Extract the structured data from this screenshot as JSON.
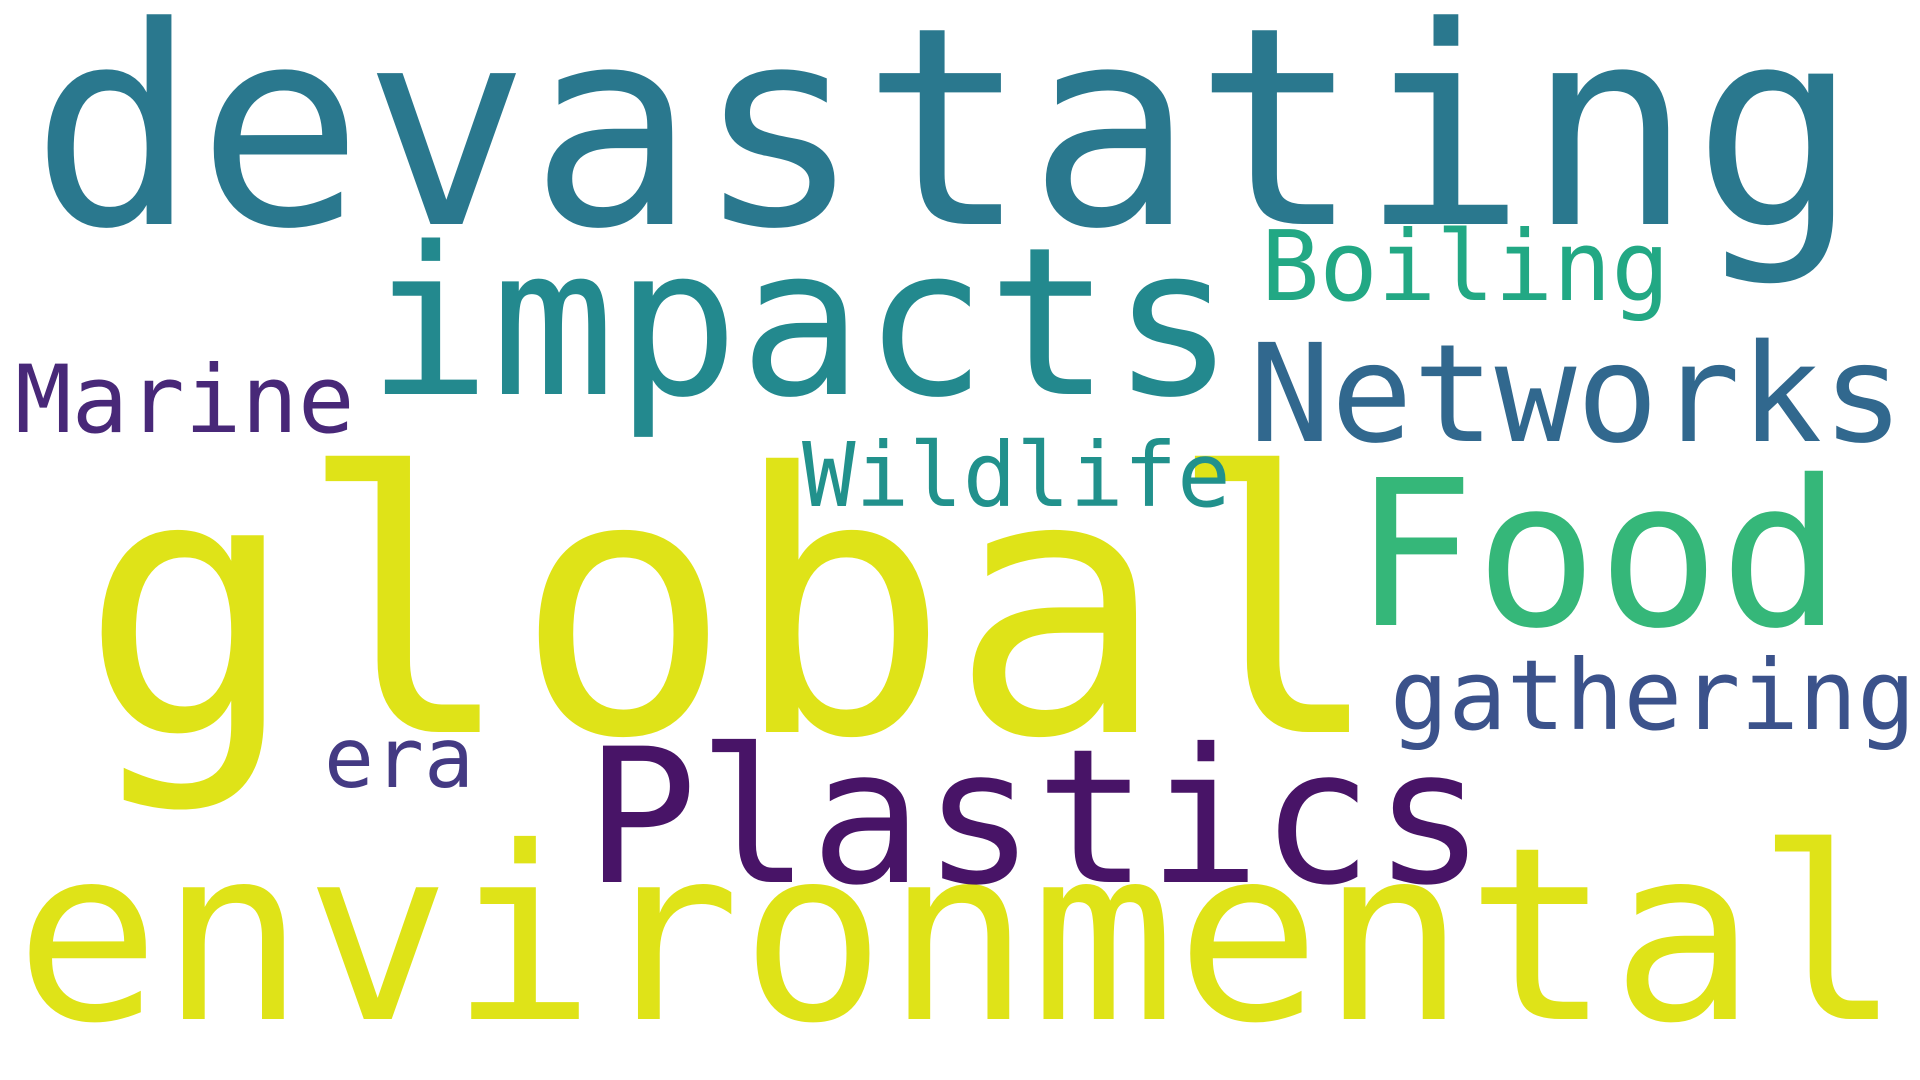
{
  "words": [
    {
      "text": "devastating",
      "color": "#2a788e"
    },
    {
      "text": "global",
      "color": "#dfe318"
    },
    {
      "text": "environmental",
      "color": "#dfe318"
    },
    {
      "text": "Plastics",
      "color": "#481467"
    },
    {
      "text": "impacts",
      "color": "#23898e"
    },
    {
      "text": "Food",
      "color": "#35b779"
    },
    {
      "text": "Networks",
      "color": "#31688e"
    },
    {
      "text": "gathering",
      "color": "#3b528b"
    },
    {
      "text": "Boiling",
      "color": "#22a884"
    },
    {
      "text": "Wildlife",
      "color": "#21918c"
    },
    {
      "text": "Marine",
      "color": "#482878"
    },
    {
      "text": "era",
      "color": "#443a83"
    }
  ]
}
